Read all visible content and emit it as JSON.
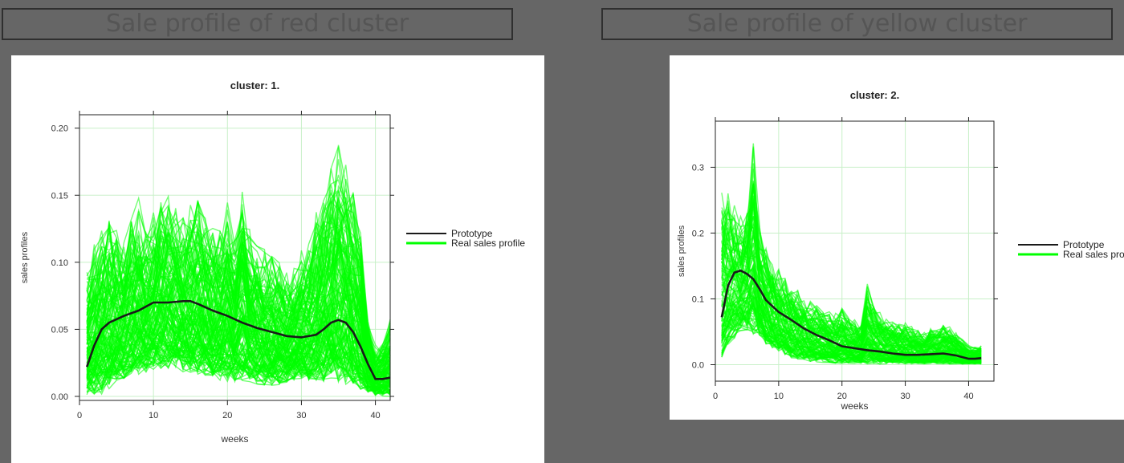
{
  "banners": {
    "left": "Sale profile of red cluster",
    "right": "Sale profile of yellow cluster"
  },
  "colors": {
    "background": "#666666",
    "prototype": "#1a1a1a",
    "real_profiles": "#00ff00",
    "grid": "#c8f0c8"
  },
  "chart_data": [
    {
      "type": "line",
      "title": "cluster: 1.",
      "xlabel": "weeks",
      "ylabel": "sales profiles",
      "xlim": [
        0,
        42
      ],
      "ylim": [
        -0.003,
        0.21
      ],
      "xticks": [
        0,
        10,
        20,
        30,
        40
      ],
      "yticks": [
        0.0,
        0.05,
        0.1,
        0.15,
        0.2
      ],
      "ytick_labels": [
        "0.00",
        "0.05",
        "0.10",
        "0.15",
        "0.20"
      ],
      "grid": true,
      "legend": {
        "position": "right",
        "entries": [
          "Prototype",
          "Real sales profile"
        ]
      },
      "series": [
        {
          "name": "Prototype",
          "x": [
            1,
            2,
            3,
            4,
            6,
            8,
            10,
            12,
            14,
            15,
            16,
            18,
            20,
            22,
            24,
            26,
            28,
            30,
            32,
            33,
            34,
            35,
            36,
            37,
            38,
            39,
            40,
            41,
            42
          ],
          "values": [
            0.022,
            0.038,
            0.05,
            0.055,
            0.06,
            0.064,
            0.07,
            0.07,
            0.071,
            0.071,
            0.069,
            0.064,
            0.06,
            0.055,
            0.051,
            0.048,
            0.045,
            0.044,
            0.046,
            0.05,
            0.055,
            0.057,
            0.055,
            0.048,
            0.037,
            0.024,
            0.013,
            0.013,
            0.014
          ]
        },
        {
          "name": "Real sales profile",
          "description_range": "many individual profiles",
          "x_start": 1,
          "x_end": 42,
          "band_low": [
            0.0,
            0.0,
            0.0,
            0.005,
            0.01,
            0.012,
            0.015,
            0.015,
            0.018,
            0.02,
            0.02,
            0.02,
            0.02,
            0.018,
            0.015,
            0.015,
            0.015,
            0.012,
            0.012,
            0.01,
            0.01,
            0.01,
            0.01,
            0.008,
            0.008,
            0.008,
            0.008,
            0.01,
            0.012,
            0.012,
            0.01,
            0.01,
            0.01,
            0.01,
            0.01,
            0.008,
            0.006,
            0.004,
            0.002,
            0.0,
            0.0,
            0.0
          ],
          "band_high": [
            0.095,
            0.12,
            0.13,
            0.14,
            0.13,
            0.12,
            0.14,
            0.15,
            0.13,
            0.14,
            0.15,
            0.155,
            0.15,
            0.14,
            0.145,
            0.155,
            0.14,
            0.13,
            0.135,
            0.15,
            0.125,
            0.17,
            0.13,
            0.12,
            0.11,
            0.11,
            0.105,
            0.095,
            0.1,
            0.11,
            0.12,
            0.14,
            0.16,
            0.18,
            0.196,
            0.18,
            0.16,
            0.13,
            0.06,
            0.04,
            0.045,
            0.06
          ]
        }
      ]
    },
    {
      "type": "line",
      "title": "cluster: 2.",
      "xlabel": "weeks",
      "ylabel": "sales profiles",
      "xlim": [
        0,
        44
      ],
      "ylim": [
        -0.025,
        0.37
      ],
      "xticks": [
        0,
        10,
        20,
        30,
        40
      ],
      "yticks": [
        0.0,
        0.1,
        0.2,
        0.3
      ],
      "ytick_labels": [
        "0.0",
        "0.1",
        "0.2",
        "0.3"
      ],
      "grid": true,
      "legend": {
        "position": "right",
        "entries": [
          "Prototype",
          "Real sales profile"
        ]
      },
      "series": [
        {
          "name": "Prototype",
          "x": [
            1,
            2,
            3,
            4,
            5,
            6,
            7,
            8,
            10,
            12,
            14,
            16,
            18,
            20,
            22,
            24,
            26,
            28,
            30,
            32,
            34,
            36,
            38,
            40,
            41,
            42
          ],
          "values": [
            0.072,
            0.12,
            0.14,
            0.143,
            0.138,
            0.13,
            0.115,
            0.098,
            0.08,
            0.068,
            0.055,
            0.045,
            0.037,
            0.028,
            0.025,
            0.022,
            0.02,
            0.017,
            0.015,
            0.015,
            0.016,
            0.017,
            0.014,
            0.009,
            0.009,
            0.01
          ]
        },
        {
          "name": "Real sales profile",
          "description_range": "many individual profiles",
          "x_start": 1,
          "x_end": 42,
          "band_low": [
            0.01,
            0.03,
            0.04,
            0.05,
            0.05,
            0.045,
            0.04,
            0.03,
            0.025,
            0.02,
            0.015,
            0.01,
            0.008,
            0.006,
            0.005,
            0.004,
            0.003,
            0.003,
            0.002,
            0.002,
            0.002,
            0.002,
            0.001,
            0.001,
            0.001,
            0.001,
            0.001,
            0.001,
            0.001,
            0.001,
            0.001,
            0.001,
            0.001,
            0.001,
            0.001,
            0.001,
            0.001,
            0.001,
            0.001,
            0.001,
            0.001,
            0.001
          ],
          "band_high": [
            0.285,
            0.27,
            0.25,
            0.23,
            0.26,
            0.35,
            0.22,
            0.19,
            0.17,
            0.15,
            0.14,
            0.13,
            0.12,
            0.11,
            0.1,
            0.095,
            0.09,
            0.085,
            0.08,
            0.09,
            0.075,
            0.07,
            0.065,
            0.13,
            0.1,
            0.085,
            0.075,
            0.07,
            0.065,
            0.065,
            0.06,
            0.055,
            0.05,
            0.06,
            0.055,
            0.065,
            0.06,
            0.05,
            0.04,
            0.03,
            0.028,
            0.03
          ]
        }
      ]
    }
  ]
}
